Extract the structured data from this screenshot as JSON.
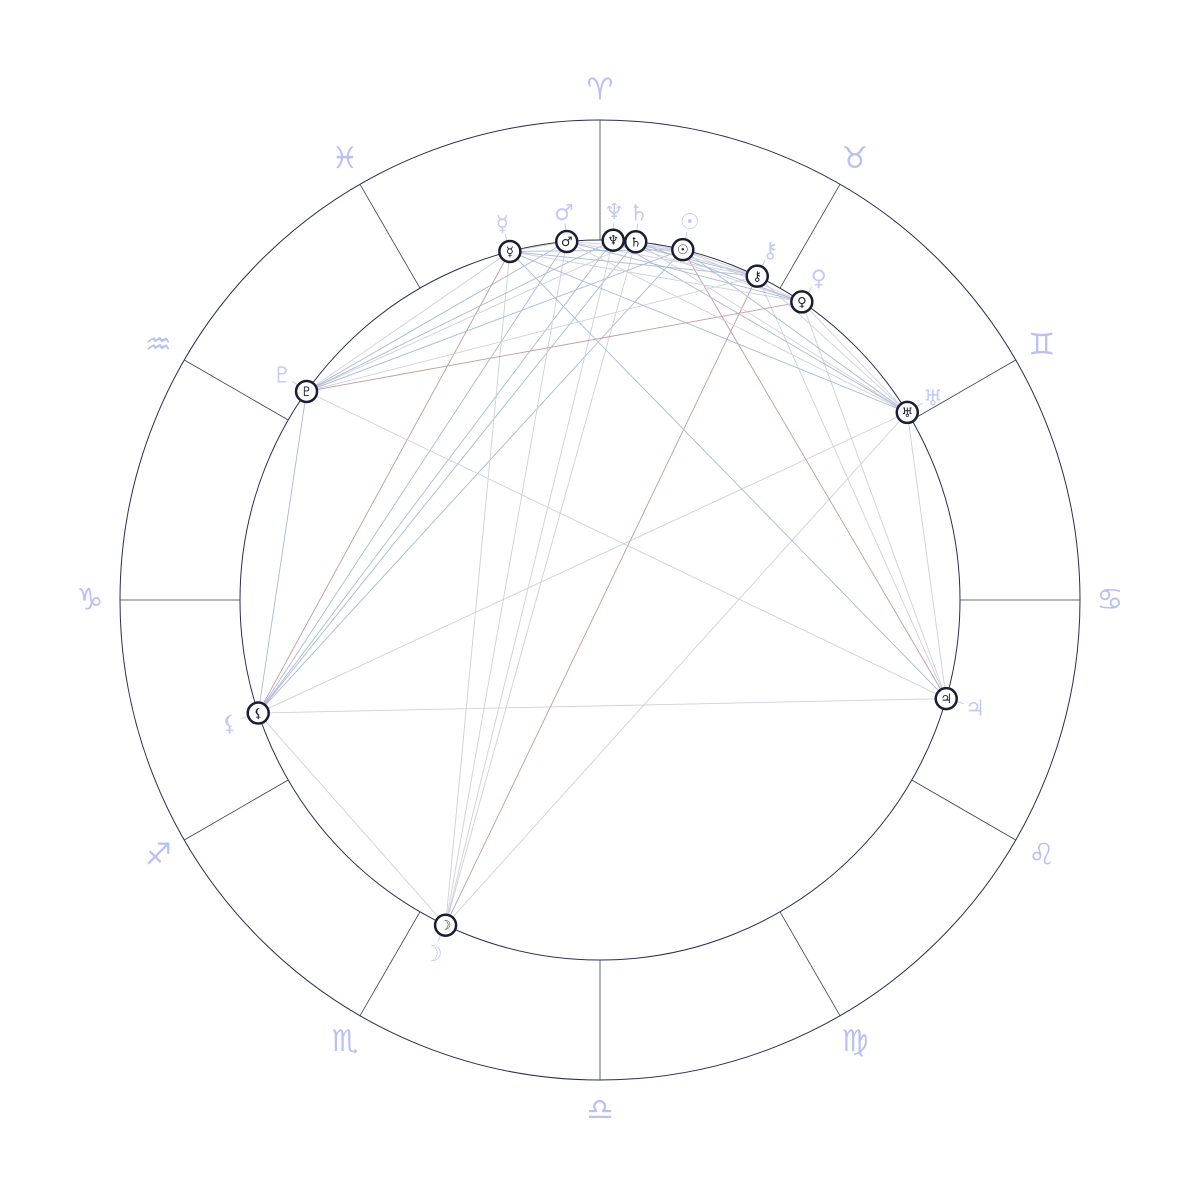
{
  "colors": {
    "ring": "#2a2d55",
    "divider": "#3a3d5c",
    "sign_glyph": "#b9c0f2",
    "planet_label": "#c4cbf6",
    "marker_stroke": "#1a1d33",
    "aspect_blue": "#aab8d8",
    "aspect_red": "#c49a9a",
    "aspect_gray": "#cfd0da"
  },
  "zodiac": [
    {
      "name": "aries",
      "glyph": "♈"
    },
    {
      "name": "taurus",
      "glyph": "♉"
    },
    {
      "name": "gemini",
      "glyph": "♊"
    },
    {
      "name": "cancer",
      "glyph": "♋"
    },
    {
      "name": "leo",
      "glyph": "♌"
    },
    {
      "name": "virgo",
      "glyph": "♍"
    },
    {
      "name": "libra",
      "glyph": "♎"
    },
    {
      "name": "scorpio",
      "glyph": "♏"
    },
    {
      "name": "sagittarius",
      "glyph": "♐"
    },
    {
      "name": "capricorn",
      "glyph": "♑"
    },
    {
      "name": "aquarius",
      "glyph": "♒"
    },
    {
      "name": "pisces",
      "glyph": "♓"
    }
  ],
  "planets": [
    {
      "id": "mercury",
      "glyph": "☿",
      "longitude": -14.5
    },
    {
      "id": "mars",
      "glyph": "♂",
      "longitude": -5.3
    },
    {
      "id": "neptune",
      "glyph": "♆",
      "longitude": 2.1
    },
    {
      "id": "saturn",
      "glyph": "♄",
      "longitude": 5.7
    },
    {
      "id": "sun",
      "glyph": "☉",
      "longitude": 13.3
    },
    {
      "id": "chiron",
      "glyph": "⚷",
      "longitude": 25.9
    },
    {
      "id": "venus",
      "glyph": "♀",
      "longitude": 34.1
    },
    {
      "id": "uranus",
      "glyph": "♅",
      "longitude": 58.6
    },
    {
      "id": "jupiter",
      "glyph": "♃",
      "longitude": 105.9
    },
    {
      "id": "moon",
      "glyph": "☽",
      "longitude": 205.4
    },
    {
      "id": "lilith",
      "glyph": "⚸",
      "longitude": 251.7
    },
    {
      "id": "pluto",
      "glyph": "♇",
      "longitude": 305.4
    }
  ],
  "aspects": [
    [
      "lilith",
      "mercury",
      "red"
    ],
    [
      "lilith",
      "mars",
      "blue"
    ],
    [
      "lilith",
      "neptune",
      "blue"
    ],
    [
      "lilith",
      "saturn",
      "blue"
    ],
    [
      "lilith",
      "sun",
      "blue"
    ],
    [
      "lilith",
      "uranus",
      "gray"
    ],
    [
      "lilith",
      "jupiter",
      "gray"
    ],
    [
      "lilith",
      "moon",
      "gray"
    ],
    [
      "lilith",
      "pluto",
      "blue"
    ],
    [
      "moon",
      "mercury",
      "gray"
    ],
    [
      "moon",
      "mars",
      "gray"
    ],
    [
      "moon",
      "neptune",
      "gray"
    ],
    [
      "moon",
      "saturn",
      "gray"
    ],
    [
      "moon",
      "chiron",
      "red"
    ],
    [
      "moon",
      "uranus",
      "gray"
    ],
    [
      "jupiter",
      "pluto",
      "gray"
    ],
    [
      "jupiter",
      "mercury",
      "blue"
    ],
    [
      "jupiter",
      "sun",
      "red"
    ],
    [
      "jupiter",
      "chiron",
      "gray"
    ],
    [
      "jupiter",
      "venus",
      "gray"
    ],
    [
      "jupiter",
      "uranus",
      "gray"
    ],
    [
      "pluto",
      "mercury",
      "gray"
    ],
    [
      "pluto",
      "mars",
      "blue"
    ],
    [
      "pluto",
      "neptune",
      "blue"
    ],
    [
      "pluto",
      "saturn",
      "gray"
    ],
    [
      "pluto",
      "sun",
      "blue"
    ],
    [
      "pluto",
      "chiron",
      "gray"
    ],
    [
      "pluto",
      "venus",
      "red"
    ],
    [
      "uranus",
      "mercury",
      "blue"
    ],
    [
      "uranus",
      "mars",
      "gray"
    ],
    [
      "uranus",
      "neptune",
      "blue"
    ],
    [
      "uranus",
      "saturn",
      "gray"
    ],
    [
      "uranus",
      "sun",
      "blue"
    ],
    [
      "uranus",
      "chiron",
      "gray"
    ],
    [
      "uranus",
      "venus",
      "gray"
    ],
    [
      "mercury",
      "venus",
      "gray"
    ],
    [
      "mercury",
      "chiron",
      "blue"
    ],
    [
      "mars",
      "venus",
      "blue"
    ],
    [
      "mars",
      "chiron",
      "gray"
    ],
    [
      "mars",
      "sun",
      "gray"
    ],
    [
      "neptune",
      "venus",
      "gray"
    ],
    [
      "neptune",
      "chiron",
      "blue"
    ],
    [
      "saturn",
      "venus",
      "blue"
    ],
    [
      "saturn",
      "chiron",
      "gray"
    ],
    [
      "sun",
      "venus",
      "gray"
    ],
    [
      "sun",
      "chiron",
      "gray"
    ],
    [
      "mercury",
      "mars",
      "gray"
    ],
    [
      "mercury",
      "sun",
      "blue"
    ],
    [
      "neptune",
      "sun",
      "gray"
    ]
  ]
}
